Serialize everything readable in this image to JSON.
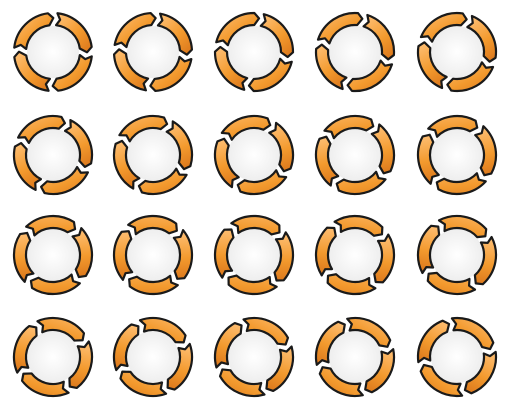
{
  "sheet": {
    "description_colors": {
      "ring_fill": "#f39a2e",
      "ring_fill_light": "#ffc27a",
      "ring_fill_dark": "#d9741a",
      "outline": "#1a1a1a",
      "center_fill": "#f6f6f6",
      "background": "#ffffff"
    },
    "rows": 4,
    "columns": 5,
    "icon_name": "rotating-arrows-ring-icon",
    "segments_per_ring": 4,
    "frames": [
      {
        "rotation_deg": 0
      },
      {
        "rotation_deg": 4
      },
      {
        "rotation_deg": 8
      },
      {
        "rotation_deg": 12
      },
      {
        "rotation_deg": 16
      },
      {
        "rotation_deg": 20
      },
      {
        "rotation_deg": 24
      },
      {
        "rotation_deg": 28
      },
      {
        "rotation_deg": 32
      },
      {
        "rotation_deg": 36
      },
      {
        "rotation_deg": 40
      },
      {
        "rotation_deg": 44
      },
      {
        "rotation_deg": 48
      },
      {
        "rotation_deg": 52
      },
      {
        "rotation_deg": 56
      },
      {
        "rotation_deg": 60
      },
      {
        "rotation_deg": 64
      },
      {
        "rotation_deg": 68
      },
      {
        "rotation_deg": 72
      },
      {
        "rotation_deg": 76
      }
    ]
  }
}
